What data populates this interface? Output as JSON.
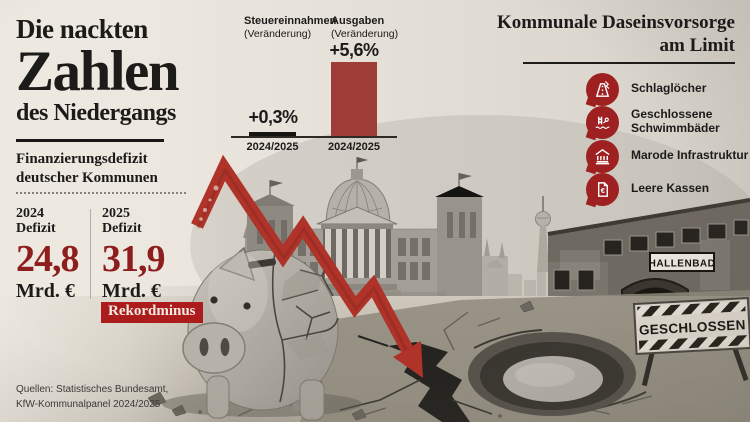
{
  "colors": {
    "paper": "#e9e4dc",
    "ink": "#1c1b19",
    "deficit_red": "#8e1d1d",
    "badge_red": "#ad1c1c",
    "icon_red": "#9e2020",
    "bar_black": "#161411",
    "bar_red": "#9e3c38",
    "arrow_red": "#b0332a"
  },
  "header": {
    "title_line1": "Die nackten",
    "title_line2": "Zahlen",
    "title_line3": "des Niedergangs",
    "subtitle_line1": "Finanzierungsdefizit",
    "subtitle_line2": "deutscher Kommunen"
  },
  "deficits": [
    {
      "year": "2024",
      "label": "Defizit",
      "value": "24,8",
      "unit": "Mrd. €"
    },
    {
      "year": "2025",
      "label": "Defizit",
      "value": "31,9",
      "unit": "Mrd. €",
      "badge": "Rekordminus"
    }
  ],
  "chart_data": {
    "type": "bar",
    "groups": [
      {
        "name": "Steuereinnahmen",
        "qualifier": "(Veränderung)",
        "period": "2024/2025",
        "value": 0.3,
        "value_label": "+0,3%",
        "color": "#161411"
      },
      {
        "name": "Ausgaben",
        "qualifier": "(Veränderung)",
        "period": "2024/2025",
        "value": 5.6,
        "value_label": "+5,6%",
        "color": "#9e3c38"
      }
    ],
    "unit": "%",
    "ylim": [
      0,
      6
    ],
    "baseline": true
  },
  "services_panel": {
    "title_line1": "Kommunale Daseinsvorsorge",
    "title_line2": "am Limit",
    "items": [
      {
        "icon": "pothole-road-icon",
        "label": "Schlaglöcher"
      },
      {
        "icon": "closed-pool-icon",
        "label": "Geschlossene Schwimmbäder"
      },
      {
        "icon": "ruined-building-icon",
        "label": "Marode Infrastruktur"
      },
      {
        "icon": "empty-coffers-icon",
        "label": "Leere Kassen",
        "glyph_char": "€"
      }
    ]
  },
  "scene": {
    "hallenbad_sign": "HALLENBAD",
    "geschlossen_sign": "GESCHLOSSEN"
  },
  "sources": {
    "line1": "Quellen: Statistisches Bundesamt,",
    "line2": "KfW-Kommunalpanel 2024/2025"
  }
}
